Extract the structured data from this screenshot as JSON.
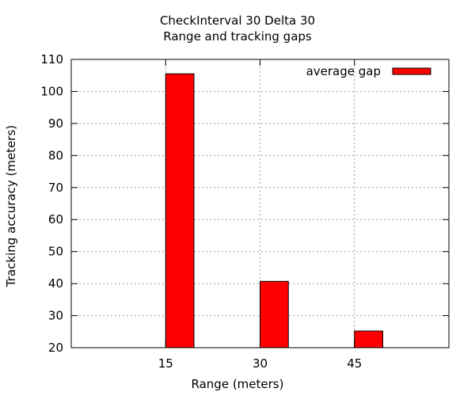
{
  "chart_data": {
    "type": "bar",
    "title": "CheckInterval 30 Delta 30",
    "subtitle": "Range and tracking gaps",
    "xlabel": "Range (meters)",
    "ylabel": "Tracking accuracy (meters)",
    "categories": [
      "15",
      "30",
      "45"
    ],
    "series": [
      {
        "name": "average gap",
        "values": [
          105.5,
          40.7,
          25.2
        ]
      }
    ],
    "ylim": [
      20,
      110
    ],
    "yticks": [
      20,
      30,
      40,
      50,
      60,
      70,
      80,
      90,
      100,
      110
    ],
    "grid": true,
    "legend_position": "top-right",
    "colors": {
      "bar": "#ff0000",
      "bar_edge": "#000000",
      "grid": "#a0a0a0",
      "axis": "#000000"
    }
  }
}
